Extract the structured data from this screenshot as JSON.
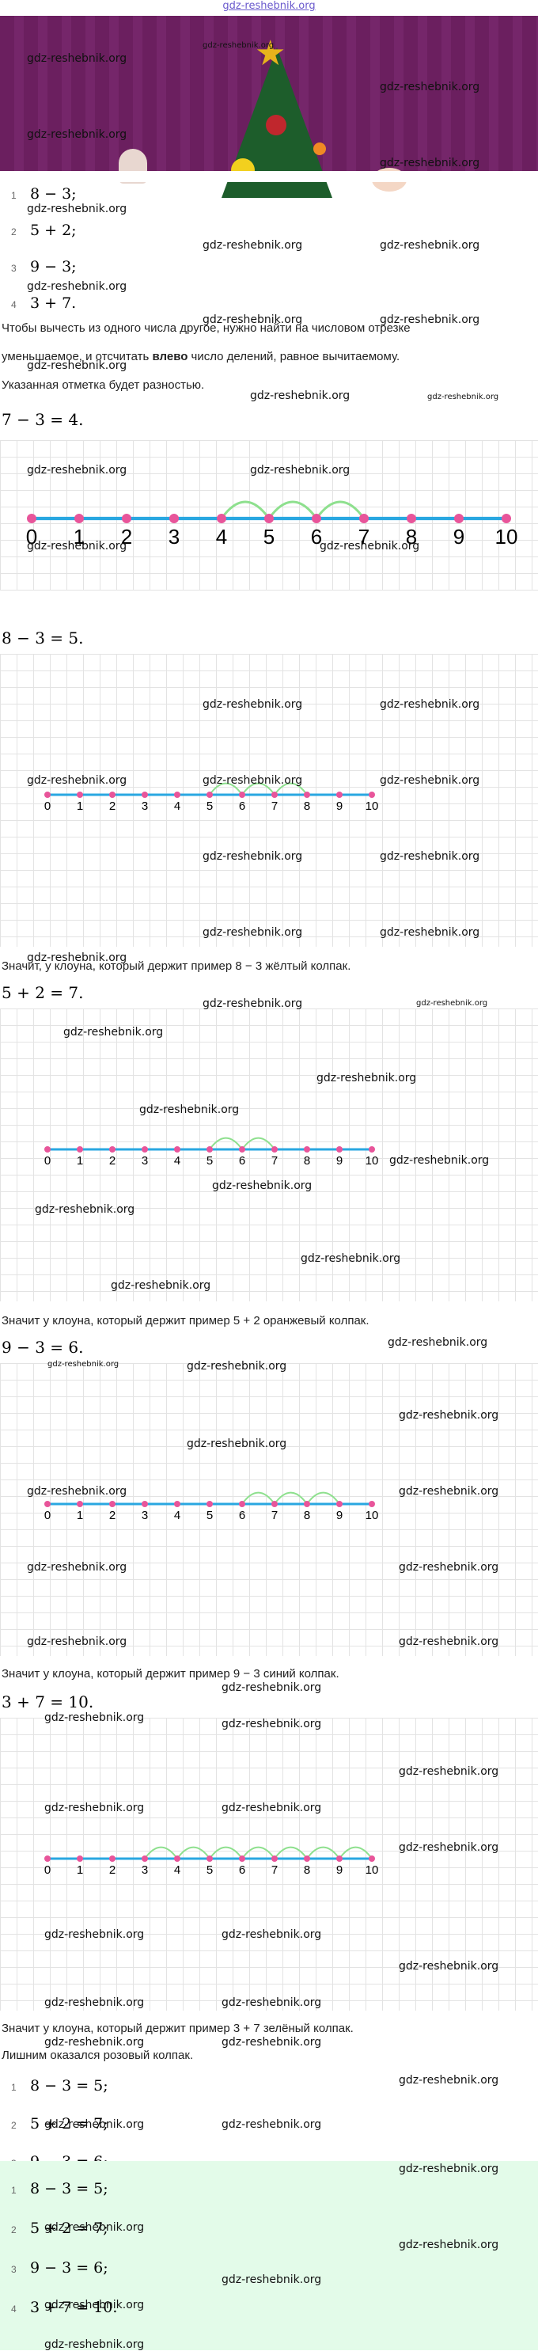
{
  "site_link": "gdz-reshebnik.org",
  "watermark": "gdz-reshebnik.org",
  "problems": {
    "p1": {
      "num": "1",
      "expr": "8 − 3;"
    },
    "p2": {
      "num": "2",
      "expr": "5 + 2;"
    },
    "p3": {
      "num": "3",
      "expr": "9 − 3;"
    },
    "p4": {
      "num": "4",
      "expr": "3 + 7."
    }
  },
  "intro": {
    "line1": "Чтобы вычесть из одного числа другое, нужно найти на числовом отрезке",
    "line2_a": "уменьшаемое, и отсчитать ",
    "line2_b": "влево",
    "line2_c": " число делений, равное вычитаемому.",
    "line3": "Указанная отметка будет разностью."
  },
  "example": {
    "expr": "7 − 3 = 4."
  },
  "tick_labels": [
    "0",
    "1",
    "2",
    "3",
    "4",
    "5",
    "6",
    "7",
    "8",
    "9",
    "10"
  ],
  "sections": {
    "s1": {
      "expr": "8 − 3 = 5.",
      "conclusion": "Значит, у клоуна, который держит пример 8 − 3 жёлтый колпак."
    },
    "s2": {
      "expr": "5 + 2 = 7.",
      "conclusion": "Значит у клоуна, который держит пример 5 + 2 оранжевый колпак."
    },
    "s3": {
      "expr": "9 − 3 = 6.",
      "conclusion": "Значит у клоуна, который держит пример 9 − 3 синий колпак."
    },
    "s4": {
      "expr": "3 + 7 = 10.",
      "conclusion": "Значит у клоуна, который держит пример 3 + 7 зелёный колпак."
    }
  },
  "leftover": "Лишним оказался розовый колпак.",
  "answers": {
    "a1": {
      "num": "1",
      "expr": "8 − 3 = 5;"
    },
    "a2": {
      "num": "2",
      "expr": "5 + 2 = 7;"
    },
    "a3": {
      "num": "3",
      "expr": "9 − 3 = 6;"
    },
    "a4": {
      "num": "4",
      "expr": "3 + 7 = 10."
    }
  },
  "colors": {
    "axis": "#29a7e1",
    "tick": "#e8559a",
    "arc": "#8ee08e",
    "banner": "#6b1f5f",
    "answer_bg": "#e3fbe9"
  }
}
